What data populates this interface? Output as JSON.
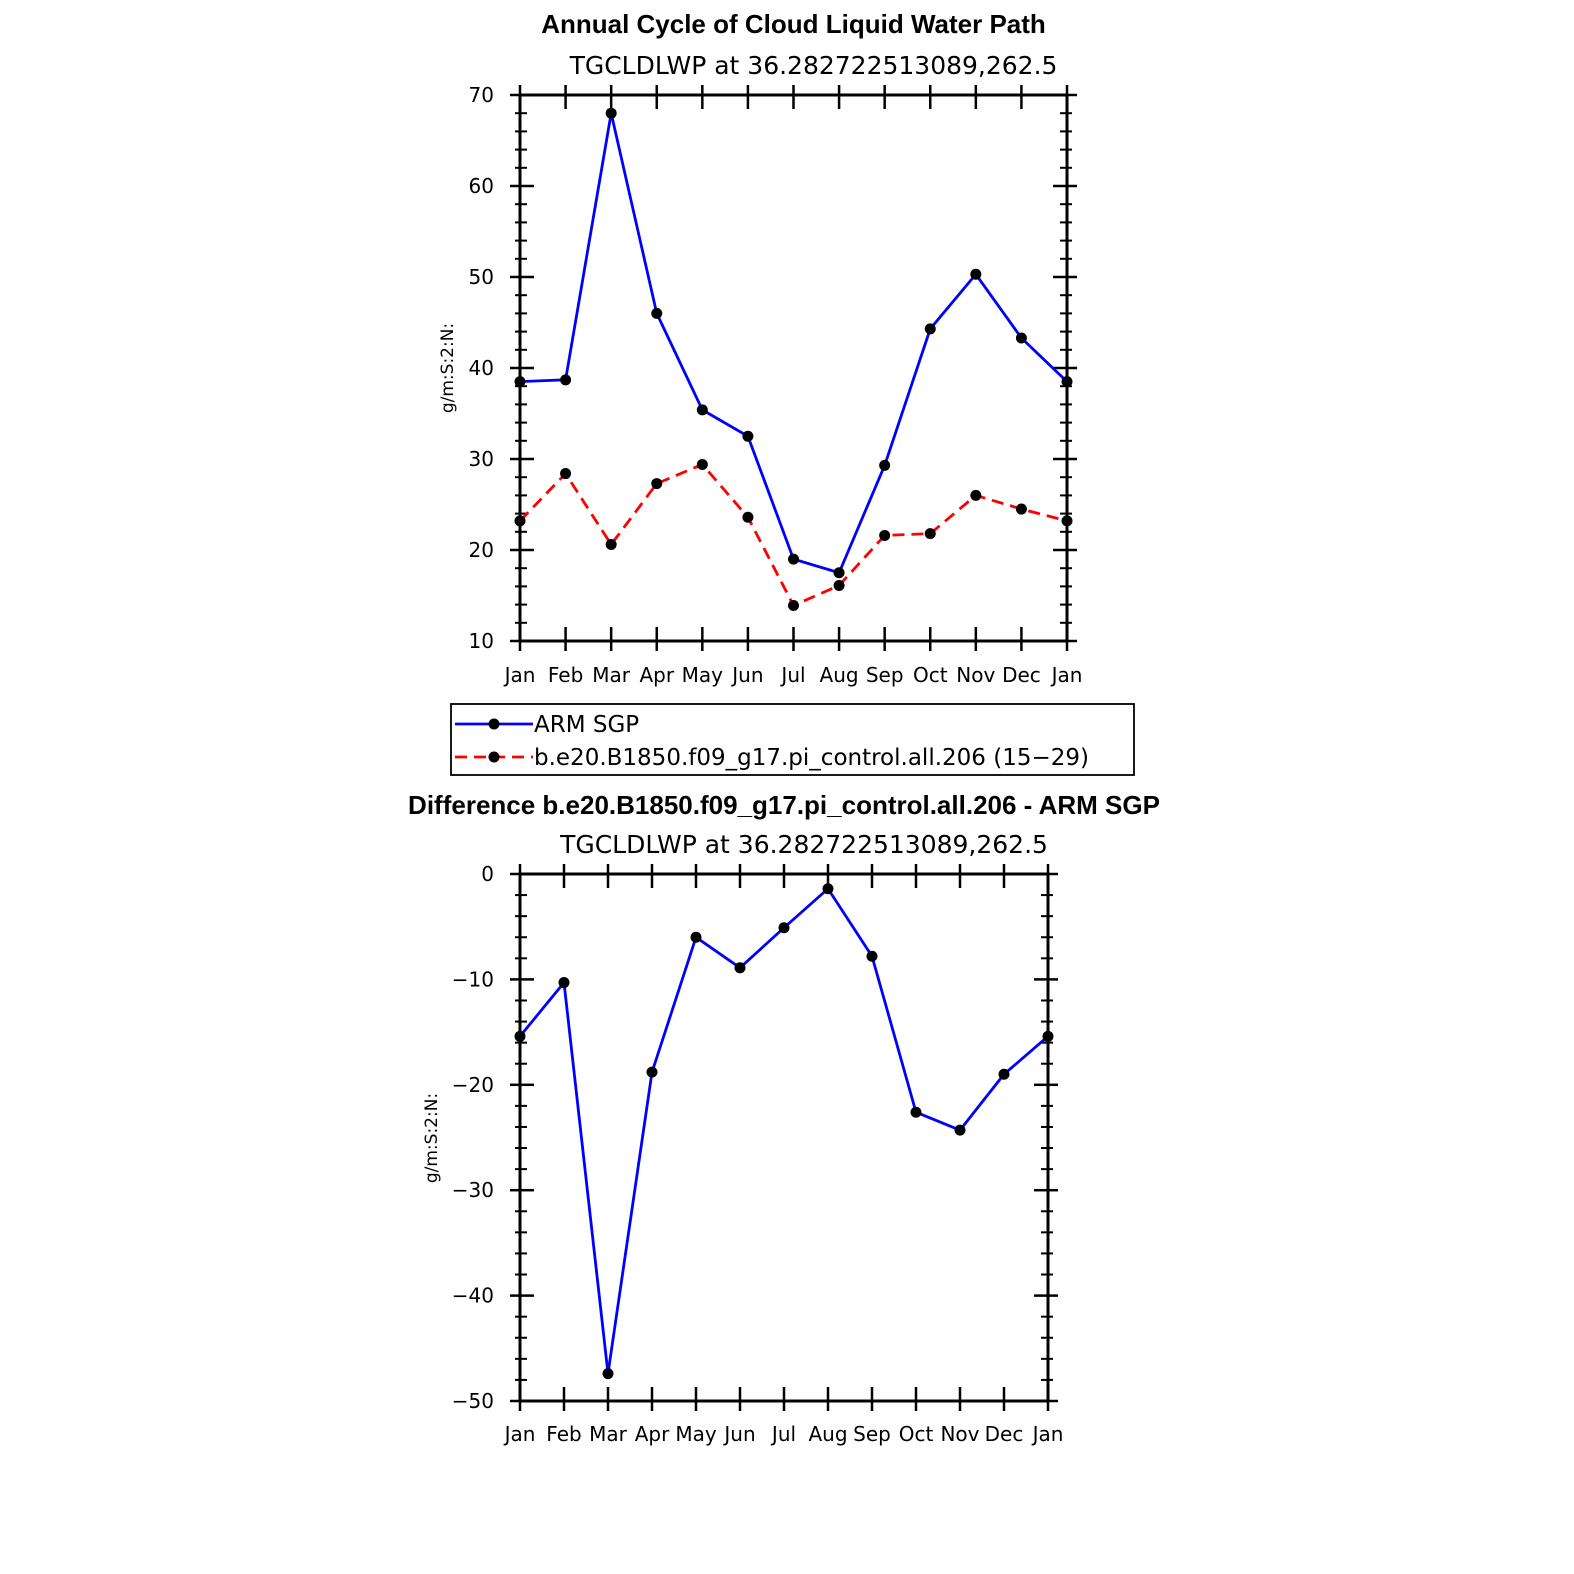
{
  "chart_data": [
    {
      "type": "line",
      "title": "Annual Cycle of Cloud Liquid Water Path",
      "subtitle": "TGCLDLWP  at  36.282722513089,262.5",
      "ylabel": "g/m:S:2:N:",
      "xlabel": "",
      "categories": [
        "Jan",
        "Feb",
        "Mar",
        "Apr",
        "May",
        "Jun",
        "Jul",
        "Aug",
        "Sep",
        "Oct",
        "Nov",
        "Dec",
        "Jan"
      ],
      "ylim": [
        10,
        70
      ],
      "yticks": [
        "10",
        "20",
        "30",
        "40",
        "50",
        "60",
        "70"
      ],
      "series": [
        {
          "name": "ARM  SGP",
          "color": "#0000ff",
          "dash": "solid",
          "values": [
            38.5,
            38.7,
            68.0,
            46.0,
            35.4,
            32.5,
            19.0,
            17.5,
            29.3,
            44.3,
            50.3,
            43.3,
            38.5
          ]
        },
        {
          "name": "b.e20.B1850.f09_g17.pi_control.all.206  (15−29)",
          "color": "#ff0000",
          "dash": "dashed",
          "values": [
            23.2,
            28.4,
            20.6,
            27.3,
            29.4,
            23.6,
            13.9,
            16.1,
            21.6,
            21.8,
            26.0,
            24.5,
            23.2
          ]
        }
      ]
    },
    {
      "type": "line",
      "title": "Difference b.e20.B1850.f09_g17.pi_control.all.206 - ARM SGP",
      "subtitle": "TGCLDLWP  at  36.282722513089,262.5",
      "ylabel": "g/m:S:2:N:",
      "xlabel": "",
      "categories": [
        "Jan",
        "Feb",
        "Mar",
        "Apr",
        "May",
        "Jun",
        "Jul",
        "Aug",
        "Sep",
        "Oct",
        "Nov",
        "Dec",
        "Jan"
      ],
      "ylim": [
        -50,
        0
      ],
      "yticks": [
        "−50",
        "−40",
        "−30",
        "−20",
        "−10",
        "0"
      ],
      "series": [
        {
          "name": "Difference",
          "color": "#0000ff",
          "dash": "solid",
          "values": [
            -15.4,
            -10.3,
            -47.4,
            -18.8,
            -6.0,
            -8.9,
            -5.1,
            -1.4,
            -7.8,
            -22.6,
            -24.3,
            -19.0,
            -15.4
          ]
        }
      ]
    }
  ]
}
